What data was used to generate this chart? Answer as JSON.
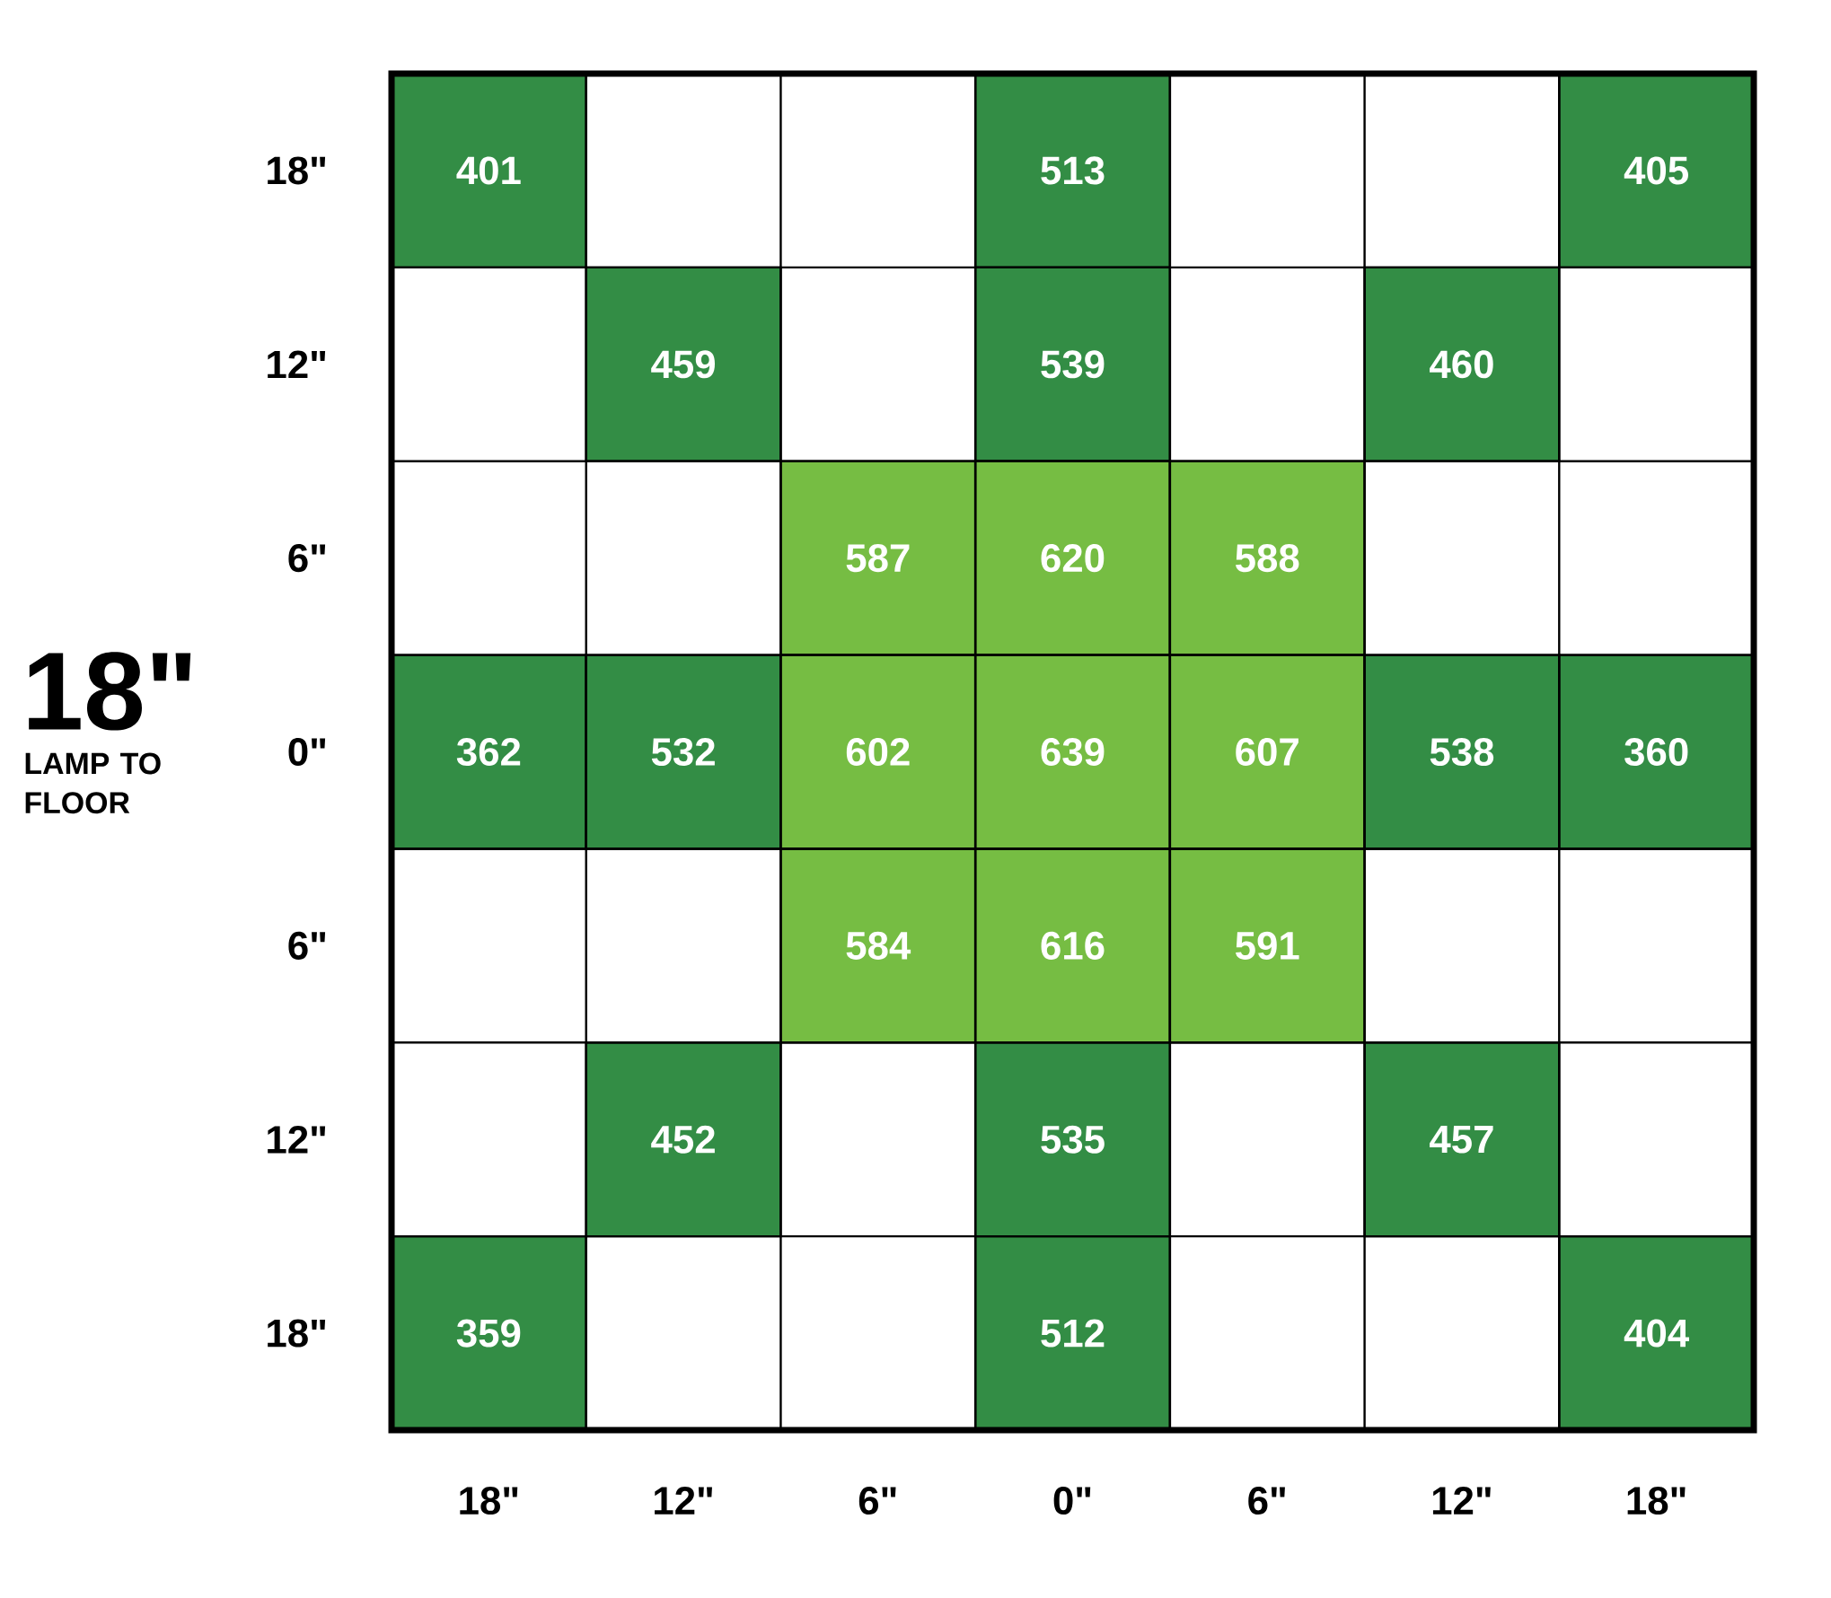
{
  "chart_data": {
    "type": "heatmap",
    "title": "18\"",
    "subtitle": "LAMP TO FLOOR",
    "categories": [
      "18\"",
      "12\"",
      "6\"",
      "0\"",
      "6\"",
      "12\"",
      "18\""
    ],
    "y_categories": [
      "18\"",
      "12\"",
      "6\"",
      "0\"",
      "6\"",
      "12\"",
      "18\""
    ],
    "cells": [
      [
        401,
        null,
        null,
        513,
        null,
        null,
        405
      ],
      [
        null,
        459,
        null,
        539,
        null,
        460,
        null
      ],
      [
        null,
        null,
        587,
        620,
        588,
        null,
        null
      ],
      [
        362,
        532,
        602,
        639,
        607,
        538,
        360
      ],
      [
        null,
        null,
        584,
        616,
        591,
        null,
        null
      ],
      [
        null,
        452,
        null,
        535,
        null,
        457,
        null
      ],
      [
        359,
        null,
        null,
        512,
        null,
        null,
        404
      ]
    ],
    "colors": [
      [
        "#338d45",
        null,
        null,
        "#338d45",
        null,
        null,
        "#338d45"
      ],
      [
        null,
        "#338d45",
        null,
        "#338d45",
        null,
        "#338d45",
        null
      ],
      [
        null,
        null,
        "#76bd43",
        "#76bd43",
        "#76bd43",
        null,
        null
      ],
      [
        "#338d45",
        "#338d45",
        "#76bd43",
        "#76bd43",
        "#76bd43",
        "#338d45",
        "#338d45"
      ],
      [
        null,
        null,
        "#76bd43",
        "#76bd43",
        "#76bd43",
        null,
        null
      ],
      [
        null,
        "#338d45",
        null,
        "#338d45",
        null,
        "#338d45",
        null
      ],
      [
        "#338d45",
        null,
        null,
        "#338d45",
        null,
        null,
        "#338d45"
      ]
    ],
    "data_labels": true
  }
}
